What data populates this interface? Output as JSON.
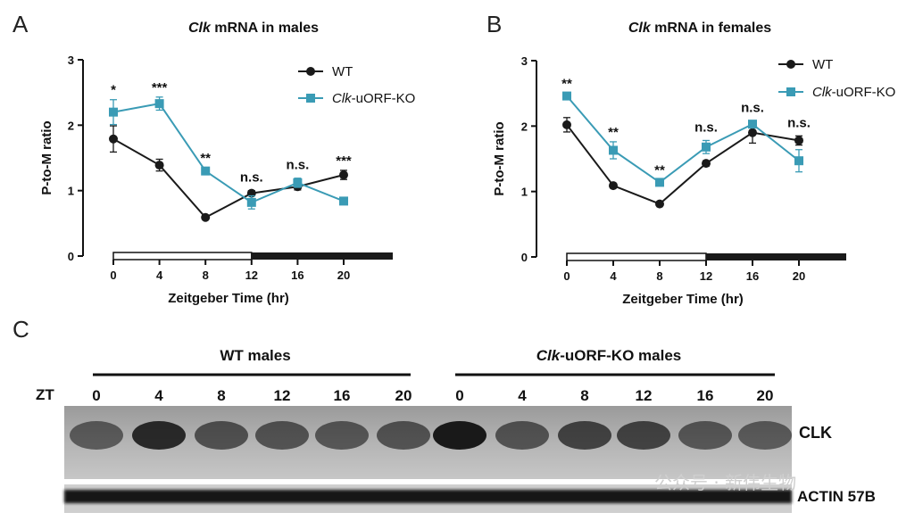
{
  "colors": {
    "wt": "#1a1a1a",
    "ko": "#3a9bb5",
    "dark_bar": "#1a1a1a"
  },
  "chart_data": [
    {
      "panel": "A",
      "type": "line",
      "title_italic": "Clk",
      "title_rest": " mRNA in males",
      "xlabel": "Zeitgeber Time (hr)",
      "ylabel": "P-to-M ratio",
      "x": [
        0,
        4,
        8,
        12,
        16,
        20
      ],
      "x_ticks": [
        "0",
        "4",
        "8",
        "12",
        "16",
        "20"
      ],
      "y_ticks": [
        "0",
        "1",
        "2",
        "3"
      ],
      "ylim": [
        0,
        3
      ],
      "xlim": [
        0,
        24
      ],
      "light_dark_bar": {
        "light": [
          0,
          12
        ],
        "dark": [
          12,
          24
        ]
      },
      "series": [
        {
          "name": "WT",
          "key": "wt",
          "marker": "circle",
          "values": [
            1.79,
            1.39,
            0.59,
            0.96,
            1.06,
            1.24
          ],
          "errors": [
            0.2,
            0.09,
            0.03,
            0.04,
            0.05,
            0.07
          ]
        },
        {
          "name_italic": "Clk",
          "name_rest": "-uORF-KO",
          "key": "ko",
          "marker": "square",
          "values": [
            2.2,
            2.33,
            1.3,
            0.82,
            1.12,
            0.84
          ],
          "errors": [
            0.19,
            0.1,
            0.05,
            0.1,
            0.07,
            0.04
          ]
        }
      ],
      "significance": [
        "*",
        "***",
        "**",
        "n.s.",
        "n.s.",
        "***"
      ],
      "legend_position": "top-right"
    },
    {
      "panel": "B",
      "type": "line",
      "title_italic": "Clk",
      "title_rest": " mRNA in females",
      "xlabel": "Zeitgeber Time (hr)",
      "ylabel": "P-to-M ratio",
      "x": [
        0,
        4,
        8,
        12,
        16,
        20
      ],
      "x_ticks": [
        "0",
        "4",
        "8",
        "12",
        "16",
        "20"
      ],
      "y_ticks": [
        "0",
        "1",
        "2",
        "3"
      ],
      "ylim": [
        0,
        3
      ],
      "xlim": [
        0,
        24
      ],
      "light_dark_bar": {
        "light": [
          0,
          12
        ],
        "dark": [
          12,
          24
        ]
      },
      "series": [
        {
          "name": "WT",
          "key": "wt",
          "marker": "circle",
          "values": [
            2.02,
            1.09,
            0.81,
            1.43,
            1.9,
            1.78
          ],
          "errors": [
            0.11,
            0.03,
            0.03,
            0.04,
            0.16,
            0.07
          ]
        },
        {
          "name_italic": "Clk",
          "name_rest": "-uORF-KO",
          "key": "ko",
          "marker": "square",
          "values": [
            2.46,
            1.63,
            1.14,
            1.68,
            2.03,
            1.47
          ],
          "errors": [
            0.04,
            0.13,
            0.04,
            0.1,
            0.05,
            0.17
          ]
        }
      ],
      "significance": [
        "**",
        "**",
        "**",
        "n.s.",
        "n.s.",
        "n.s."
      ],
      "legend_position": "top-right"
    }
  ],
  "blot": {
    "panel": "C",
    "group1_label": "WT males",
    "group2_label_italic": "Clk",
    "group2_label_rest": "-uORF-KO males",
    "zt_label": "ZT",
    "lanes": [
      "0",
      "4",
      "8",
      "12",
      "16",
      "20",
      "0",
      "4",
      "8",
      "12",
      "16",
      "20"
    ],
    "band1_label": "CLK",
    "band2_label": "ACTIN 57B",
    "watermark": "公众号 · 新伟生物"
  }
}
